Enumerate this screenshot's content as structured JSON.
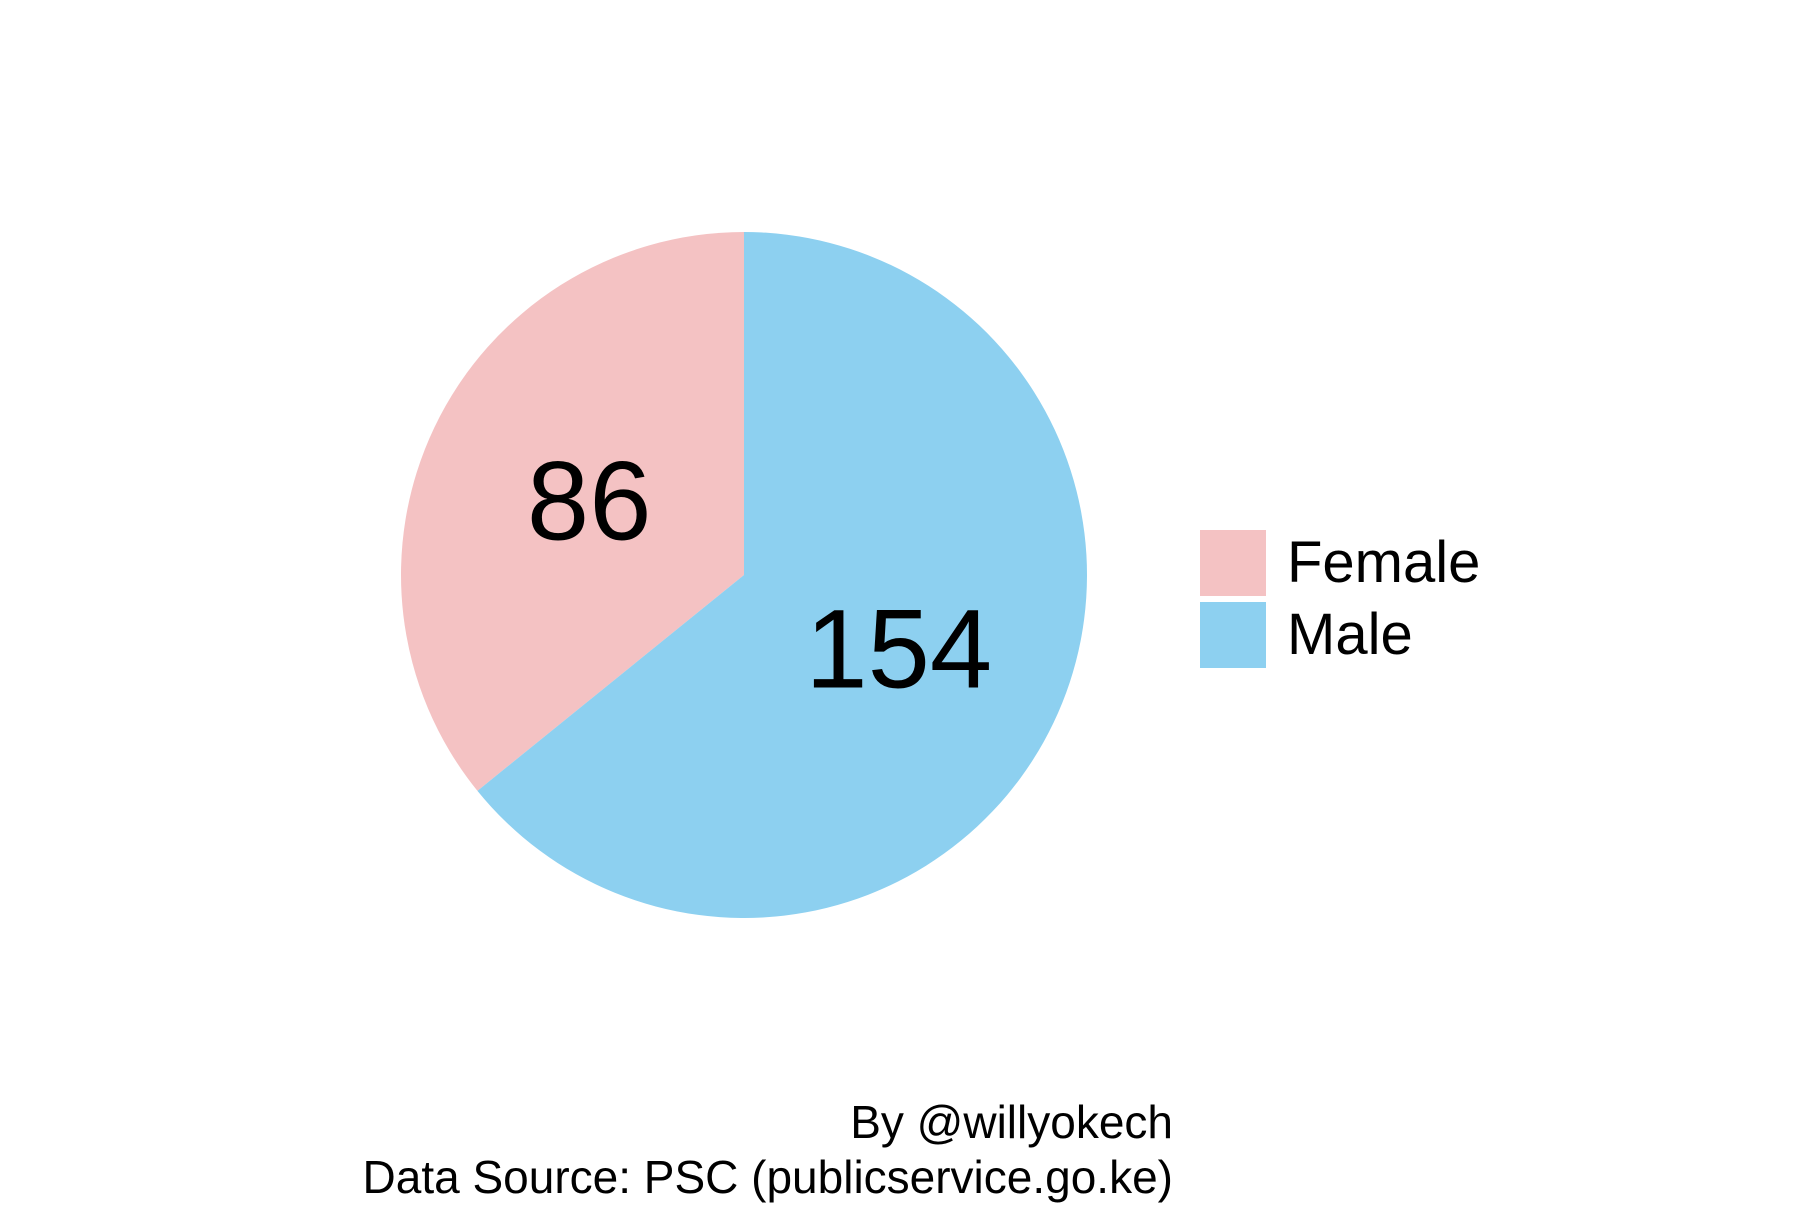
{
  "chart_data": {
    "type": "pie",
    "categories": [
      "Female",
      "Male"
    ],
    "values": [
      86,
      154
    ],
    "colors": [
      "#f4c2c3",
      "#8dd0f0"
    ],
    "start": "12 o'clock",
    "direction": "counterclockwise",
    "legend": {
      "position": "right",
      "entries": [
        "Female",
        "Male"
      ]
    },
    "data_labels": [
      "86",
      "154"
    ]
  },
  "caption": {
    "author": "By @willyokech",
    "source": "Data Source: PSC (publicservice.go.ke)"
  }
}
